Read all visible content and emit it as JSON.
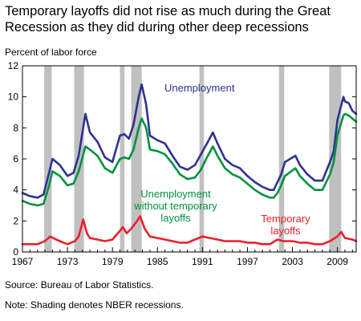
{
  "chart_data": {
    "type": "line",
    "title": "Temporary layoffs did not rise as much during the Great Recession as they did during other deep recessions",
    "ylabel": "Percent of labor force",
    "source": "Source: Bureau of Labor Statistics.",
    "note": "Note: Shading denotes NBER recessions.",
    "xlim": [
      1967,
      2011.5
    ],
    "ylim": [
      0,
      12
    ],
    "x_ticks": [
      "1967",
      "1973",
      "1979",
      "1985",
      "1991",
      "1997",
      "2003",
      "2009"
    ],
    "y_ticks": [
      "0",
      "2",
      "4",
      "6",
      "8",
      "10",
      "12"
    ],
    "recessions": [
      [
        1969.9,
        1970.9
      ],
      [
        1973.9,
        1975.2
      ],
      [
        1980.0,
        1980.6
      ],
      [
        1981.5,
        1982.9
      ],
      [
        1990.6,
        1991.2
      ],
      [
        2001.2,
        2001.9
      ],
      [
        2007.9,
        2009.5
      ]
    ],
    "annotations": {
      "unemployment": "Unemployment",
      "without_temp_line1": "Unemployment",
      "without_temp_line2": "without temporary",
      "without_temp_line3": "layoffs",
      "temp_line1": "Temporary",
      "temp_line2": "layoffs"
    },
    "colors": {
      "unemployment": "#2e3192",
      "without_temporary": "#00923f",
      "temporary": "#e8212b",
      "recession": "#c0c0c0"
    },
    "series": [
      {
        "name": "Unemployment",
        "x": [
          1967,
          1968,
          1969,
          1969.8,
          1970.5,
          1971,
          1972,
          1973,
          1973.8,
          1974.5,
          1975.4,
          1976,
          1977,
          1978,
          1979,
          1980,
          1980.6,
          1981.2,
          1981.8,
          1982.5,
          1982.9,
          1983.5,
          1984,
          1985,
          1986,
          1987,
          1988,
          1989,
          1990,
          1990.8,
          1991.5,
          1992.4,
          1993,
          1994,
          1995,
          1996,
          1997,
          1998,
          1999,
          2000,
          2000.5,
          2001,
          2001.5,
          2002,
          2003.4,
          2004,
          2005,
          2006,
          2007,
          2008,
          2008.5,
          2009,
          2009.8,
          2010,
          2010.5,
          2011,
          2011.5
        ],
        "values": [
          3.8,
          3.6,
          3.5,
          3.7,
          5.0,
          6.0,
          5.6,
          4.9,
          5.1,
          6.2,
          8.9,
          7.7,
          7.1,
          6.1,
          5.8,
          7.5,
          7.6,
          7.3,
          8.2,
          10.0,
          10.8,
          9.5,
          7.5,
          7.2,
          7.0,
          6.2,
          5.5,
          5.3,
          5.6,
          6.3,
          6.9,
          7.7,
          7.0,
          6.0,
          5.6,
          5.4,
          4.9,
          4.5,
          4.2,
          4.0,
          4.0,
          4.5,
          5.0,
          5.8,
          6.2,
          5.6,
          5.0,
          4.6,
          4.6,
          5.8,
          6.5,
          8.5,
          10.0,
          9.7,
          9.6,
          9.1,
          8.9
        ]
      },
      {
        "name": "Unemployment without temporary layoffs",
        "x": [
          1967,
          1968,
          1969,
          1969.8,
          1970.5,
          1971,
          1972,
          1973,
          1973.8,
          1974.5,
          1975.4,
          1976,
          1977,
          1978,
          1979,
          1980,
          1980.6,
          1981.2,
          1981.8,
          1982.5,
          1982.9,
          1983.5,
          1984,
          1985,
          1986,
          1987,
          1988,
          1989,
          1990,
          1990.8,
          1991.5,
          1992.4,
          1993,
          1994,
          1995,
          1996,
          1997,
          1998,
          1999,
          2000,
          2000.5,
          2001,
          2001.5,
          2002,
          2003.4,
          2004,
          2005,
          2006,
          2007,
          2008,
          2008.5,
          2009,
          2009.8,
          2010,
          2010.5,
          2011,
          2011.5
        ],
        "values": [
          3.3,
          3.1,
          3.0,
          3.1,
          4.2,
          5.2,
          4.9,
          4.3,
          4.4,
          5.2,
          6.8,
          6.6,
          6.2,
          5.4,
          5.1,
          6.0,
          6.1,
          6.0,
          6.6,
          8.0,
          8.6,
          8.0,
          6.6,
          6.5,
          6.3,
          5.7,
          5.0,
          4.7,
          4.8,
          5.3,
          6.0,
          6.8,
          6.2,
          5.4,
          5.0,
          4.8,
          4.4,
          4.0,
          3.7,
          3.5,
          3.5,
          3.8,
          4.3,
          4.9,
          5.4,
          4.9,
          4.4,
          4.0,
          4.0,
          5.0,
          5.8,
          7.5,
          8.8,
          8.9,
          8.8,
          8.6,
          8.4
        ]
      },
      {
        "name": "Temporary layoffs",
        "x": [
          1967,
          1968,
          1969,
          1970,
          1970.7,
          1971.5,
          1972,
          1973,
          1974,
          1974.5,
          1975.1,
          1975.6,
          1976,
          1977,
          1978,
          1979,
          1980.4,
          1980.9,
          1981.5,
          1982.3,
          1982.7,
          1983.3,
          1984,
          1985,
          1986,
          1987,
          1988,
          1989,
          1990,
          1991,
          1992,
          1993,
          1994,
          1995,
          1996,
          1997,
          1998,
          1999,
          2000,
          2001,
          2001.8,
          2002,
          2003,
          2004,
          2005,
          2006,
          2007,
          2008,
          2009,
          2009.5,
          2010,
          2011,
          2011.5
        ],
        "values": [
          0.5,
          0.5,
          0.5,
          0.7,
          1.0,
          0.8,
          0.7,
          0.5,
          0.7,
          1.0,
          2.1,
          1.2,
          0.9,
          0.8,
          0.7,
          0.8,
          1.6,
          1.2,
          1.5,
          2.0,
          2.3,
          1.5,
          1.0,
          0.9,
          0.8,
          0.7,
          0.6,
          0.6,
          0.8,
          1.0,
          0.9,
          0.8,
          0.7,
          0.7,
          0.7,
          0.6,
          0.6,
          0.5,
          0.5,
          0.8,
          0.7,
          0.7,
          0.7,
          0.6,
          0.6,
          0.5,
          0.5,
          0.7,
          1.0,
          1.3,
          0.9,
          0.8,
          0.7
        ]
      }
    ]
  }
}
